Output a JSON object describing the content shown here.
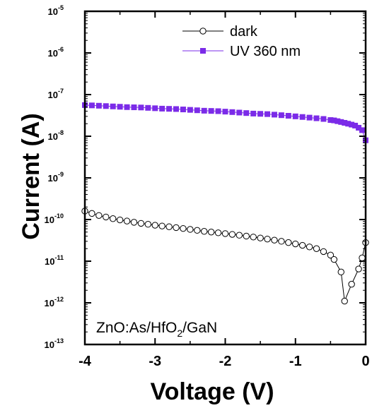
{
  "chart_data": {
    "type": "scatter",
    "xlabel": "Voltage (V)",
    "ylabel": "Current (A)",
    "xlim": [
      -4,
      0
    ],
    "ylim": [
      1e-13,
      1e-05
    ],
    "yscale": "log",
    "xticks": [
      "-4",
      "-3",
      "-2",
      "-1",
      "0"
    ],
    "yticks": [
      {
        "base": "10",
        "exp": "-13",
        "value": 1e-13
      },
      {
        "base": "10",
        "exp": "-12",
        "value": 1e-12
      },
      {
        "base": "10",
        "exp": "-11",
        "value": 1e-11
      },
      {
        "base": "10",
        "exp": "-10",
        "value": 1e-10
      },
      {
        "base": "10",
        "exp": "-9",
        "value": 1e-09
      },
      {
        "base": "10",
        "exp": "-8",
        "value": 1e-08
      },
      {
        "base": "10",
        "exp": "-7",
        "value": 1e-07
      },
      {
        "base": "10",
        "exp": "-6",
        "value": 1e-06
      },
      {
        "base": "10",
        "exp": "-5",
        "value": 1e-05
      }
    ],
    "annotation": {
      "p1": "ZnO:As/HfO",
      "sub": "2",
      "p2": "/GaN"
    },
    "legend_position": "top-right",
    "series": [
      {
        "name": "dark",
        "marker": "open-circle",
        "color": "#000000",
        "x": [
          -4.0,
          -3.9,
          -3.8,
          -3.7,
          -3.6,
          -3.5,
          -3.4,
          -3.3,
          -3.2,
          -3.1,
          -3.0,
          -2.9,
          -2.8,
          -2.7,
          -2.6,
          -2.5,
          -2.4,
          -2.3,
          -2.2,
          -2.1,
          -2.0,
          -1.9,
          -1.8,
          -1.7,
          -1.6,
          -1.5,
          -1.4,
          -1.3,
          -1.2,
          -1.1,
          -1.0,
          -0.9,
          -0.8,
          -0.7,
          -0.6,
          -0.5,
          -0.45,
          -0.35,
          -0.3,
          -0.2,
          -0.1,
          -0.05,
          0.0
        ],
        "y": [
          1.6e-10,
          1.4e-10,
          1.25e-10,
          1.15e-10,
          1.05e-10,
          9.8e-11,
          9.2e-11,
          8.6e-11,
          8.1e-11,
          7.7e-11,
          7.3e-11,
          7e-11,
          6.7e-11,
          6.4e-11,
          6.1e-11,
          5.8e-11,
          5.5e-11,
          5.2e-11,
          5e-11,
          4.8e-11,
          4.6e-11,
          4.4e-11,
          4.2e-11,
          4e-11,
          3.8e-11,
          3.6e-11,
          3.4e-11,
          3.2e-11,
          3e-11,
          2.8e-11,
          2.6e-11,
          2.4e-11,
          2.2e-11,
          2e-11,
          1.7e-11,
          1.4e-11,
          1.1e-11,
          5.5e-12,
          1.1e-12,
          2.8e-12,
          6.5e-12,
          1.2e-11,
          2.8e-11
        ]
      },
      {
        "name": "UV 360 nm",
        "marker": "filled-square",
        "color": "#7b2be8",
        "x": [
          -4.0,
          -3.9,
          -3.8,
          -3.7,
          -3.6,
          -3.5,
          -3.4,
          -3.3,
          -3.2,
          -3.1,
          -3.0,
          -2.9,
          -2.8,
          -2.7,
          -2.6,
          -2.5,
          -2.4,
          -2.3,
          -2.2,
          -2.1,
          -2.0,
          -1.9,
          -1.8,
          -1.7,
          -1.6,
          -1.5,
          -1.4,
          -1.3,
          -1.2,
          -1.1,
          -1.0,
          -0.9,
          -0.8,
          -0.7,
          -0.6,
          -0.5,
          -0.45,
          -0.4,
          -0.35,
          -0.3,
          -0.25,
          -0.2,
          -0.15,
          -0.1,
          -0.05,
          0.0
        ],
        "y": [
          5.6e-08,
          5.5e-08,
          5.4e-08,
          5.3e-08,
          5.2e-08,
          5.1e-08,
          5e-08,
          4.95e-08,
          4.9e-08,
          4.8e-08,
          4.7e-08,
          4.6e-08,
          4.55e-08,
          4.5e-08,
          4.4e-08,
          4.3e-08,
          4.2e-08,
          4.1e-08,
          4.05e-08,
          4e-08,
          3.9e-08,
          3.8e-08,
          3.7e-08,
          3.6e-08,
          3.5e-08,
          3.45e-08,
          3.4e-08,
          3.3e-08,
          3.2e-08,
          3.1e-08,
          3e-08,
          2.9e-08,
          2.8e-08,
          2.7e-08,
          2.6e-08,
          2.45e-08,
          2.4e-08,
          2.3e-08,
          2.2e-08,
          2.1e-08,
          2e-08,
          1.9e-08,
          1.8e-08,
          1.6e-08,
          1.4e-08,
          8e-09
        ]
      }
    ]
  }
}
